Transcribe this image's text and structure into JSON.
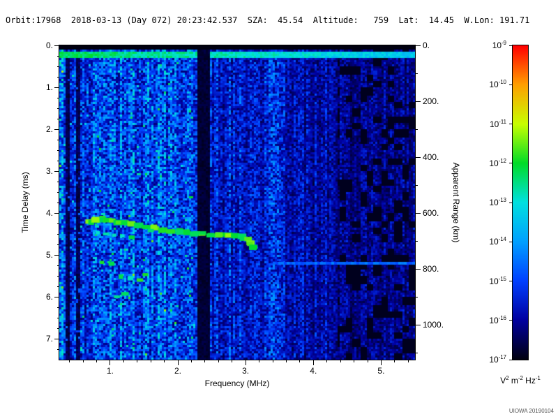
{
  "header": {
    "text": "Orbit:17968  2018-03-13 (Day 072) 20:23:42.537  SZA:  45.54  Altitude:   759  Lat:  14.45  W.Lon: 191.71",
    "orbit": "17968",
    "date": "2018-03-13",
    "day_of_year": "072",
    "time": "20:23:42.537",
    "sza": "45.54",
    "altitude": "759",
    "lat": "14.45",
    "w_lon": "191.71"
  },
  "footer": {
    "credit": "UIOWA 20190104"
  },
  "chart_data": {
    "type": "heatmap",
    "title": "",
    "xlabel": "Frequency (MHz)",
    "ylabel": "Time Delay (ms)",
    "y2label": "Apparent Range (km)",
    "x_range_mhz": [
      0.25,
      5.5
    ],
    "y_range_ms": [
      0,
      7.5
    ],
    "km_per_ms": 150,
    "x_ticks": [
      {
        "v": 1,
        "label": "1."
      },
      {
        "v": 2,
        "label": "2."
      },
      {
        "v": 3,
        "label": "3."
      },
      {
        "v": 4,
        "label": "4."
      },
      {
        "v": 5,
        "label": "5."
      }
    ],
    "y_ticks": [
      {
        "v": 0,
        "label": "0."
      },
      {
        "v": 1,
        "label": "1."
      },
      {
        "v": 2,
        "label": "2."
      },
      {
        "v": 3,
        "label": "3."
      },
      {
        "v": 4,
        "label": "4."
      },
      {
        "v": 5,
        "label": "5."
      },
      {
        "v": 6,
        "label": "6."
      },
      {
        "v": 7,
        "label": "7."
      }
    ],
    "y2_ticks_km": [
      {
        "v": 0,
        "label": "0."
      },
      {
        "v": 200,
        "label": "200."
      },
      {
        "v": 400,
        "label": "400."
      },
      {
        "v": 600,
        "label": "600."
      },
      {
        "v": 800,
        "label": "800."
      },
      {
        "v": 1000,
        "label": "1000."
      }
    ],
    "x_minor_step": 0.2,
    "y_minor_step": 0.25,
    "y2_minor_step_km": 100,
    "colorbar": {
      "base": "10",
      "exponents": [
        -9,
        -10,
        -11,
        -12,
        -13,
        -14,
        -15,
        -16,
        -17
      ],
      "units_parts": [
        [
          "V",
          "2"
        ],
        [
          " m",
          "-2"
        ],
        [
          " Hz",
          "-1"
        ]
      ],
      "colormap_stops": [
        "#000010",
        "#0000a0",
        "#0040ff",
        "#00a0ff",
        "#00e0e0",
        "#00dc28",
        "#c8ff00",
        "#ffa000",
        "#ff0000"
      ]
    },
    "features": {
      "noise_seed": 20180313,
      "top_black_bar_ms": [
        0,
        0.12
      ],
      "surface_line_ms": 0.22,
      "dark_bands_mhz": [
        [
          2.3,
          2.47
        ]
      ],
      "dark_stripes_mhz": [
        [
          0.33,
          0.4
        ],
        [
          0.5,
          0.55
        ]
      ],
      "echo_trace": [
        [
          0.72,
          4.2
        ],
        [
          0.8,
          4.17
        ],
        [
          0.88,
          4.15
        ],
        [
          0.96,
          4.17
        ],
        [
          1.04,
          4.19
        ],
        [
          1.12,
          4.22
        ],
        [
          1.22,
          4.24
        ],
        [
          1.32,
          4.27
        ],
        [
          1.42,
          4.3
        ],
        [
          1.54,
          4.33
        ],
        [
          1.66,
          4.36
        ],
        [
          1.78,
          4.39
        ],
        [
          1.9,
          4.42
        ],
        [
          2.02,
          4.44
        ],
        [
          2.14,
          4.46
        ],
        [
          2.26,
          4.48
        ],
        [
          2.38,
          4.5
        ],
        [
          2.5,
          4.52
        ],
        [
          2.62,
          4.53
        ],
        [
          2.74,
          4.55
        ],
        [
          2.86,
          4.56
        ],
        [
          2.96,
          4.58
        ],
        [
          3.04,
          4.63
        ],
        [
          3.08,
          4.73
        ],
        [
          3.11,
          4.83
        ]
      ],
      "echo_blobs": [
        [
          0.82,
          4.47
        ],
        [
          0.94,
          4.5
        ],
        [
          1.06,
          4.53
        ],
        [
          1.18,
          4.55
        ],
        [
          1.32,
          4.58
        ],
        [
          0.88,
          5.18
        ],
        [
          1.02,
          5.21
        ],
        [
          1.16,
          5.52
        ],
        [
          1.3,
          5.56
        ],
        [
          1.44,
          5.6
        ],
        [
          1.22,
          5.93
        ],
        [
          1.52,
          5.47
        ],
        [
          1.1,
          6.0
        ],
        [
          1.6,
          4.42
        ]
      ],
      "faint_line": {
        "t_ms": 5.2,
        "f_start": 3.4,
        "f_end": 5.5
      }
    }
  }
}
